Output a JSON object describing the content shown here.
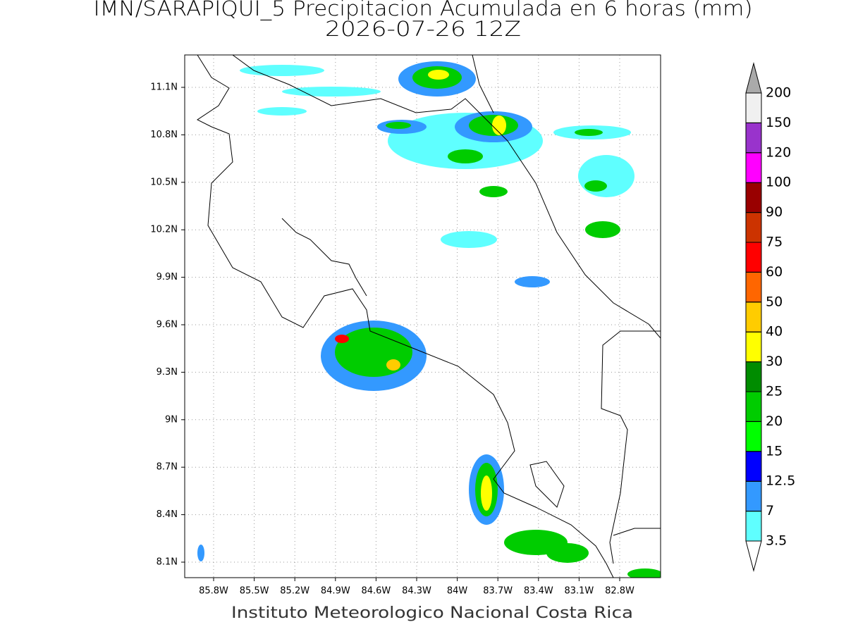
{
  "map": {
    "title": "IMN/SARAPIQUI_5 Precipitacion Acumulada en 6 horas (mm)",
    "subtitle": "2026-07-26 12Z",
    "footer": "Instituto Meteorologico Nacional Costa Rica",
    "lon_ticks": [
      "85.8W",
      "85.5W",
      "85.2W",
      "84.9W",
      "84.6W",
      "84.3W",
      "84W",
      "83.7W",
      "83.4W",
      "83.1W",
      "82.8W"
    ],
    "lat_ticks": [
      "11.1N",
      "10.8N",
      "10.5N",
      "10.2N",
      "9.9N",
      "9.6N",
      "9.3N",
      "9N",
      "8.7N",
      "8.4N",
      "8.1N"
    ],
    "colorbar": {
      "levels": [
        3.5,
        7,
        12.5,
        15,
        20,
        25,
        30,
        40,
        50,
        60,
        75,
        90,
        100,
        120,
        150,
        200
      ],
      "colors": [
        "#ffffff",
        "#5fffff",
        "#3399ff",
        "#0000ff",
        "#00ff00",
        "#00cc00",
        "#008c00",
        "#ffff00",
        "#ffcc00",
        "#ff6600",
        "#ff0000",
        "#cc3300",
        "#990000",
        "#ff00ff",
        "#9933cc",
        "#f0f0f0",
        "#aaaaaa"
      ]
    }
  }
}
